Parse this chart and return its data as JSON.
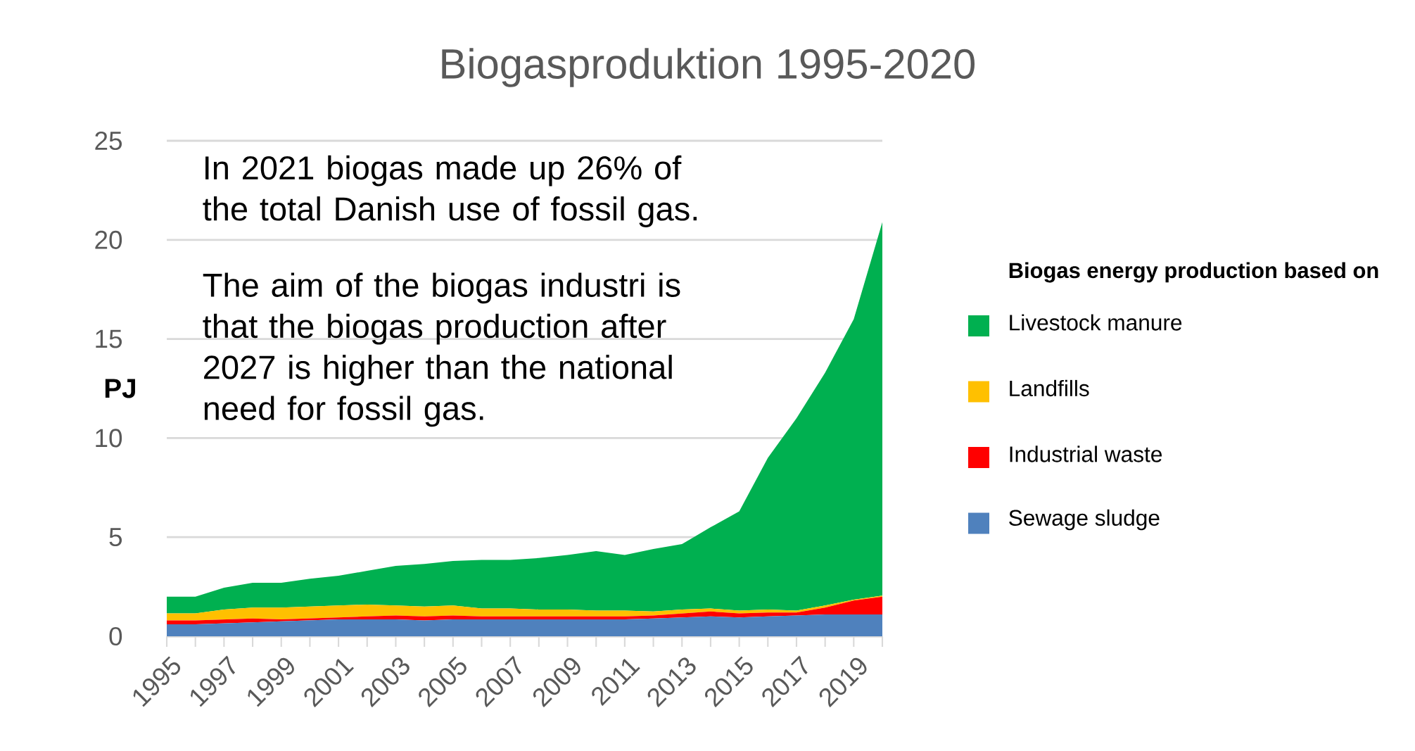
{
  "chart_data": {
    "type": "area",
    "title": "Biogasproduktion 1995-2020",
    "ylabel": "PJ",
    "legend_title": "Biogas energy production based on",
    "categories": [
      "1995",
      null,
      "1997",
      null,
      "1999",
      null,
      "2001",
      null,
      "2003",
      null,
      "2005",
      null,
      "2007",
      null,
      "2009",
      null,
      "2011",
      null,
      "2013",
      null,
      "2015",
      null,
      "2017",
      null,
      "2019",
      null
    ],
    "stacked": true,
    "series": [
      {
        "name": "Sewage sludge",
        "color": "#4f81bd",
        "values": [
          0.6,
          0.6,
          0.65,
          0.7,
          0.75,
          0.8,
          0.85,
          0.85,
          0.85,
          0.8,
          0.85,
          0.85,
          0.85,
          0.85,
          0.85,
          0.85,
          0.85,
          0.9,
          0.95,
          1.0,
          0.95,
          1.0,
          1.05,
          1.1,
          1.1,
          1.1
        ]
      },
      {
        "name": "Industrial waste",
        "color": "#ff0000",
        "values": [
          0.2,
          0.2,
          0.2,
          0.2,
          0.1,
          0.1,
          0.1,
          0.15,
          0.2,
          0.2,
          0.2,
          0.15,
          0.15,
          0.15,
          0.15,
          0.15,
          0.15,
          0.15,
          0.2,
          0.25,
          0.2,
          0.2,
          0.15,
          0.35,
          0.7,
          0.9
        ]
      },
      {
        "name": "Landfills",
        "color": "#ffc000",
        "values": [
          0.35,
          0.35,
          0.5,
          0.55,
          0.6,
          0.6,
          0.6,
          0.6,
          0.5,
          0.5,
          0.5,
          0.4,
          0.4,
          0.35,
          0.35,
          0.3,
          0.3,
          0.2,
          0.2,
          0.15,
          0.15,
          0.15,
          0.1,
          0.1,
          0.05,
          0.05
        ]
      },
      {
        "name": "Livestock manure",
        "color": "#00b050",
        "values": [
          0.85,
          0.85,
          1.1,
          1.25,
          1.25,
          1.4,
          1.5,
          1.7,
          2.0,
          2.15,
          2.25,
          2.45,
          2.45,
          2.6,
          2.75,
          3.0,
          2.8,
          3.15,
          3.3,
          4.1,
          5.0,
          7.65,
          9.7,
          11.75,
          14.15,
          18.85
        ]
      }
    ],
    "ylim": [
      0,
      25
    ],
    "yticks": [
      0,
      5,
      10,
      15,
      20,
      25
    ],
    "grid": "y",
    "legend": "right",
    "annotations": [
      "In 2021 biogas made up 26% of the total Danish use of fossil gas.",
      "The aim of the biogas industri is that the biogas production after 2027 is higher than the national need for fossil gas."
    ]
  }
}
